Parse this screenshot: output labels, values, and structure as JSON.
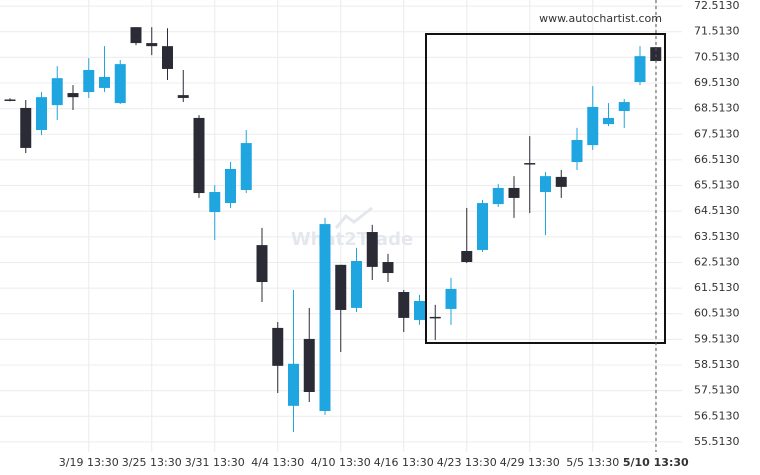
{
  "chart_data": {
    "type": "candlestick",
    "source": "www.autochartist.com",
    "watermark": "What2Trade",
    "categories": [
      null,
      null,
      null,
      null,
      null,
      "3/19 13:30",
      null,
      null,
      null,
      "3/25 13:30",
      null,
      null,
      null,
      "3/31 13:30",
      null,
      null,
      null,
      "4/4 13:30",
      null,
      null,
      null,
      "4/10 13:30",
      null,
      null,
      null,
      "4/16 13:30",
      null,
      null,
      null,
      "4/23 13:30",
      null,
      null,
      null,
      "4/29 13:30",
      null,
      null,
      null,
      "5/5 13:30",
      null,
      null,
      null,
      "5/10 13:30"
    ],
    "open": [
      68.87,
      68.54,
      67.68,
      68.65,
      69.12,
      69.16,
      69.32,
      68.73,
      71.69,
      71.07,
      70.95,
      69.04,
      68.15,
      64.48,
      64.83,
      65.34,
      63.19,
      59.96,
      56.92,
      59.53,
      56.72,
      62.42,
      60.74,
      63.7,
      62.53,
      61.36,
      60.27,
      60.39,
      60.7,
      62.96,
      63.0,
      64.79,
      65.42,
      66.39,
      65.26,
      65.85,
      66.43,
      67.09,
      67.91,
      68.42,
      69.55,
      70.91
    ],
    "high": [
      68.92,
      68.85,
      69.16,
      70.17,
      69.43,
      70.48,
      70.95,
      70.41,
      71.69,
      71.69,
      71.65,
      70.02,
      68.26,
      65.53,
      66.43,
      67.68,
      63.86,
      60.19,
      61.44,
      60.74,
      64.25,
      62.42,
      63.08,
      63.98,
      62.85,
      61.44,
      61.25,
      60.86,
      61.91,
      64.64,
      64.95,
      65.57,
      65.88,
      67.44,
      66.04,
      66.12,
      67.76,
      69.39,
      68.73,
      68.89,
      70.95,
      70.91
    ],
    "low": [
      68.8,
      66.78,
      67.48,
      68.07,
      68.46,
      68.93,
      69.16,
      68.69,
      70.99,
      70.6,
      69.63,
      68.77,
      65.03,
      63.39,
      64.64,
      65.22,
      60.97,
      57.42,
      55.9,
      57.07,
      56.57,
      59.02,
      60.58,
      61.83,
      61.75,
      59.8,
      60.08,
      59.49,
      60.08,
      62.49,
      62.92,
      64.68,
      64.25,
      64.44,
      63.58,
      65.03,
      66.12,
      66.9,
      67.83,
      67.76,
      69.43,
      70.37
    ],
    "close": [
      68.85,
      66.98,
      68.96,
      69.7,
      68.96,
      70.02,
      69.75,
      70.25,
      71.07,
      70.95,
      70.06,
      68.93,
      65.22,
      65.26,
      66.16,
      67.17,
      61.75,
      58.48,
      58.56,
      57.46,
      64.01,
      60.66,
      62.57,
      62.34,
      62.1,
      60.35,
      61.01,
      60.39,
      61.48,
      62.53,
      64.83,
      65.42,
      65.03,
      66.35,
      65.88,
      65.46,
      67.29,
      68.58,
      68.15,
      68.77,
      70.56,
      70.37
    ],
    "up_color": "#1fa5e0",
    "down_color": "#2b2b36",
    "ylim": [
      55.12,
      72.75
    ],
    "yticks": [
      {
        "value": 55.513,
        "label": "55.5130"
      },
      {
        "value": 56.513,
        "label": "56.5130"
      },
      {
        "value": 57.513,
        "label": "57.5130"
      },
      {
        "value": 58.513,
        "label": "58.5130"
      },
      {
        "value": 59.513,
        "label": "59.5130"
      },
      {
        "value": 60.513,
        "label": "60.5130"
      },
      {
        "value": 61.513,
        "label": "61.5130"
      },
      {
        "value": 62.513,
        "label": "62.5130"
      },
      {
        "value": 63.513,
        "label": "63.5130"
      },
      {
        "value": 64.513,
        "label": "64.5130"
      },
      {
        "value": 65.513,
        "label": "65.5130"
      },
      {
        "value": 66.513,
        "label": "66.5130"
      },
      {
        "value": 67.513,
        "label": "67.5130"
      },
      {
        "value": 68.513,
        "label": "68.5130"
      },
      {
        "value": 69.513,
        "label": "69.5130"
      },
      {
        "value": 70.513,
        "label": "70.5130"
      },
      {
        "value": 71.513,
        "label": "71.5130"
      },
      {
        "value": 72.513,
        "label": "72.5130"
      }
    ],
    "grid": true
  }
}
